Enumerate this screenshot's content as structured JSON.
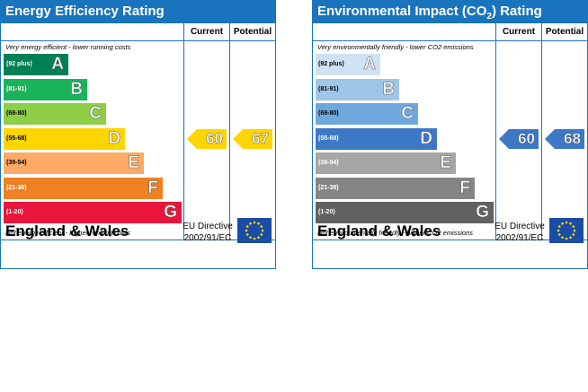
{
  "chart_data": [
    {
      "type": "bar",
      "title": "Energy Efficiency Rating",
      "columns": [
        "Current",
        "Potential"
      ],
      "top_note": "Very energy efficient - lower running costs",
      "bottom_note": "Not energy efficient - higher running costs",
      "bands": [
        {
          "letter": "A",
          "range": "(92 plus)",
          "color": "#008054"
        },
        {
          "letter": "B",
          "range": "(81-91)",
          "color": "#19b459"
        },
        {
          "letter": "C",
          "range": "(69-80)",
          "color": "#8dce46"
        },
        {
          "letter": "D",
          "range": "(55-68)",
          "color": "#ffd500"
        },
        {
          "letter": "E",
          "range": "(39-54)",
          "color": "#fcaa65"
        },
        {
          "letter": "F",
          "range": "(21-38)",
          "color": "#ef8023"
        },
        {
          "letter": "G",
          "range": "(1-20)",
          "color": "#e9153b"
        }
      ],
      "current": 60,
      "potential": 67,
      "current_color": "#ffd500",
      "potential_color": "#ffd500",
      "region": "England & Wales",
      "directive": [
        "EU Directive",
        "2002/91/EC"
      ]
    },
    {
      "type": "bar",
      "title": "Environmental Impact (CO2) Rating",
      "title_main": "Environmental Impact (CO",
      "title_sub": "2",
      "title_end": ") Rating",
      "columns": [
        "Current",
        "Potential"
      ],
      "top_note": "Very environmentally friendly - lower CO2 emissions",
      "bottom_note": "Not environmentally friendly - higher CO2 emissions",
      "bands": [
        {
          "letter": "A",
          "range": "(92 plus)",
          "color": "#cfe2f3"
        },
        {
          "letter": "B",
          "range": "(81-91)",
          "color": "#9fc5e8"
        },
        {
          "letter": "C",
          "range": "(69-80)",
          "color": "#6fa8dc"
        },
        {
          "letter": "D",
          "range": "(55-68)",
          "color": "#3d78c6"
        },
        {
          "letter": "E",
          "range": "(39-54)",
          "color": "#a6a6a6"
        },
        {
          "letter": "F",
          "range": "(21-38)",
          "color": "#858585"
        },
        {
          "letter": "G",
          "range": "(1-20)",
          "color": "#616161"
        }
      ],
      "current": 60,
      "potential": 68,
      "current_color": "#3d78c6",
      "potential_color": "#3d78c6",
      "region": "England & Wales",
      "directive": [
        "EU Directive",
        "2002/91/EC"
      ]
    }
  ]
}
